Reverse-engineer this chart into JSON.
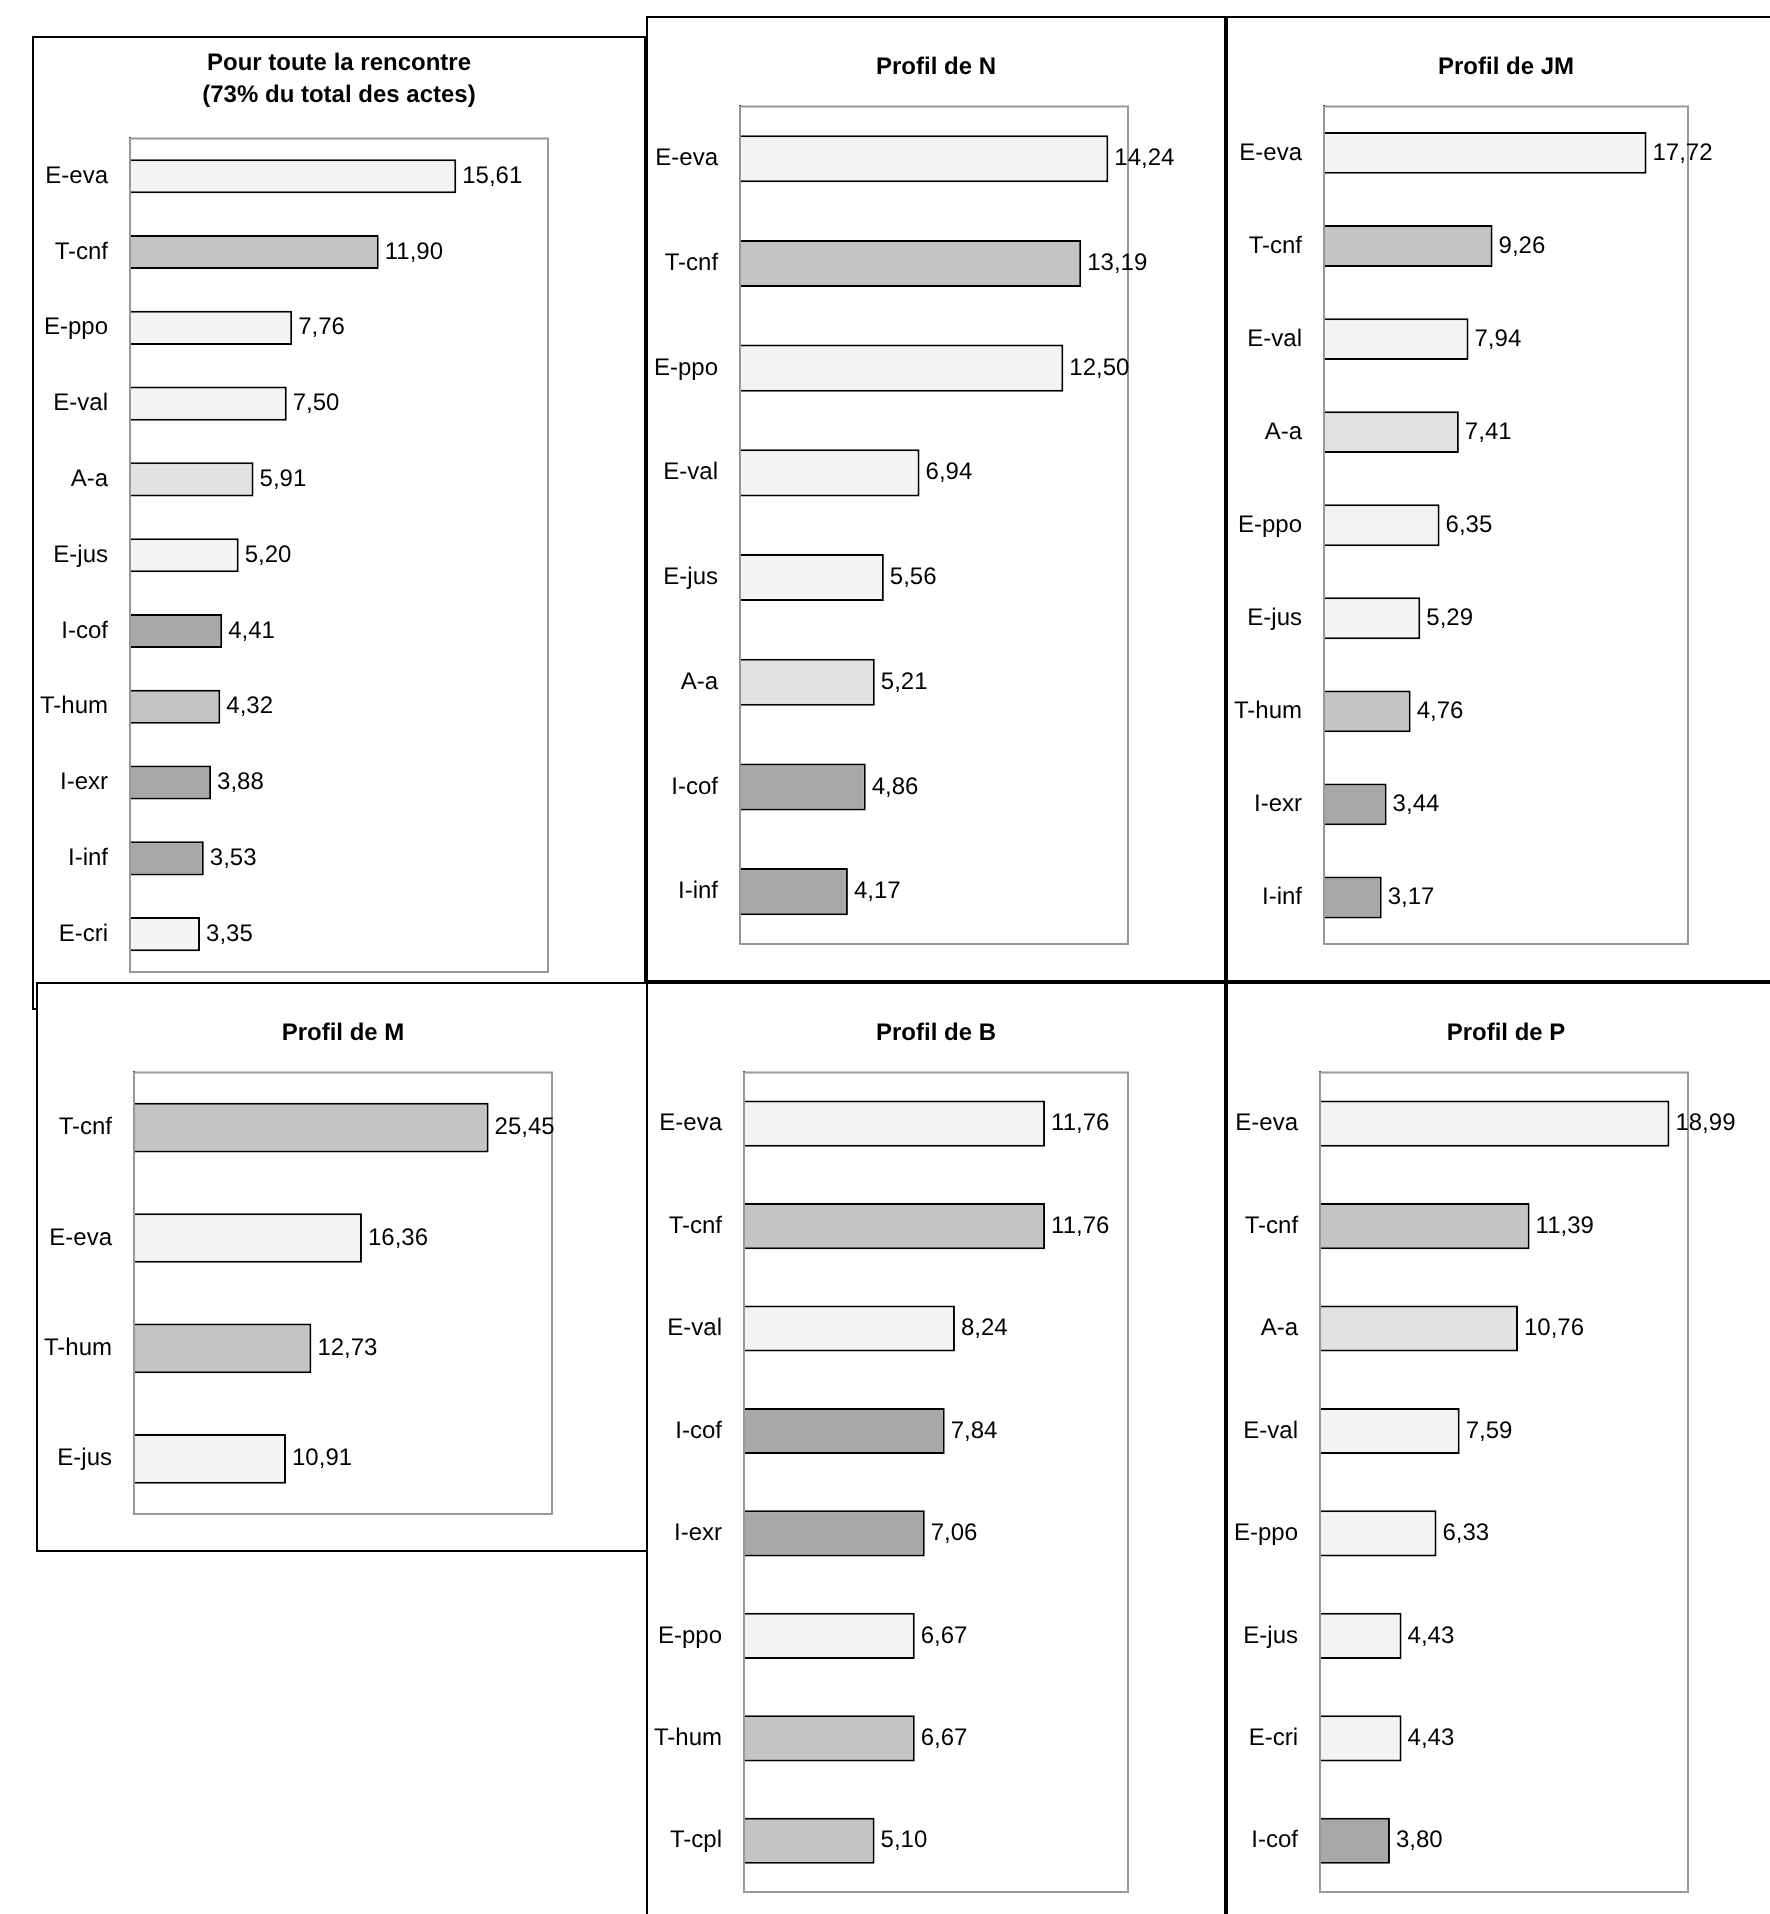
{
  "chart_data": [
    {
      "type": "bar",
      "orientation": "horizontal",
      "title": "Pour toute la rencontre",
      "subtitle": "(73% du total des actes)",
      "categories": [
        "E-eva",
        "T-cnf",
        "E-ppo",
        "E-val",
        "A-a",
        "E-jus",
        "I-cof",
        "T-hum",
        "I-exr",
        "I-inf",
        "E-cri"
      ],
      "values": [
        15.61,
        11.9,
        7.76,
        7.5,
        5.91,
        5.2,
        4.41,
        4.32,
        3.88,
        3.53,
        3.35
      ],
      "value_labels": [
        "15,61",
        "11,90",
        "7,76",
        "7,50",
        "5,91",
        "5,20",
        "4,41",
        "4,32",
        "3,88",
        "3,53",
        "3,35"
      ],
      "colors": [
        "#f4f4f4",
        "#c4c4c4",
        "#f4f4f4",
        "#f4f4f4",
        "#e2e2e2",
        "#f4f4f4",
        "#a8a8a8",
        "#c4c4c4",
        "#a8a8a8",
        "#a8a8a8",
        "#f4f4f4"
      ],
      "legend": false
    },
    {
      "type": "bar",
      "orientation": "horizontal",
      "title": "Profil de N",
      "categories": [
        "E-eva",
        "T-cnf",
        "E-ppo",
        "E-val",
        "E-jus",
        "A-a",
        "I-cof",
        "I-inf"
      ],
      "values": [
        14.24,
        13.19,
        12.5,
        6.94,
        5.56,
        5.21,
        4.86,
        4.17
      ],
      "value_labels": [
        "14,24",
        "13,19",
        "12,50",
        "6,94",
        "5,56",
        "5,21",
        "4,86",
        "4,17"
      ],
      "colors": [
        "#f4f4f4",
        "#c4c4c4",
        "#f4f4f4",
        "#f4f4f4",
        "#f4f4f4",
        "#e2e2e2",
        "#a8a8a8",
        "#a8a8a8"
      ],
      "legend": false
    },
    {
      "type": "bar",
      "orientation": "horizontal",
      "title": "Profil de JM",
      "categories": [
        "E-eva",
        "T-cnf",
        "E-val",
        "A-a",
        "E-ppo",
        "E-jus",
        "T-hum",
        "I-exr",
        "I-inf"
      ],
      "values": [
        17.72,
        9.26,
        7.94,
        7.41,
        6.35,
        5.29,
        4.76,
        3.44,
        3.17
      ],
      "value_labels": [
        "17,72",
        "9,26",
        "7,94",
        "7,41",
        "6,35",
        "5,29",
        "4,76",
        "3,44",
        "3,17"
      ],
      "colors": [
        "#f4f4f4",
        "#c4c4c4",
        "#f4f4f4",
        "#e2e2e2",
        "#f4f4f4",
        "#f4f4f4",
        "#c4c4c4",
        "#a8a8a8",
        "#a8a8a8"
      ],
      "legend": false
    },
    {
      "type": "bar",
      "orientation": "horizontal",
      "title": "Profil de M",
      "categories": [
        "T-cnf",
        "E-eva",
        "T-hum",
        "E-jus"
      ],
      "values": [
        25.45,
        16.36,
        12.73,
        10.91
      ],
      "value_labels": [
        "25,45",
        "16,36",
        "12,73",
        "10,91"
      ],
      "colors": [
        "#c4c4c4",
        "#f4f4f4",
        "#c4c4c4",
        "#f4f4f4"
      ],
      "legend": false
    },
    {
      "type": "bar",
      "orientation": "horizontal",
      "title": "Profil de B",
      "categories": [
        "E-eva",
        "T-cnf",
        "E-val",
        "I-cof",
        "I-exr",
        "E-ppo",
        "T-hum",
        "T-cpl"
      ],
      "values": [
        11.76,
        11.76,
        8.24,
        7.84,
        7.06,
        6.67,
        6.67,
        5.1
      ],
      "value_labels": [
        "11,76",
        "11,76",
        "8,24",
        "7,84",
        "7,06",
        "6,67",
        "6,67",
        "5,10"
      ],
      "colors": [
        "#f4f4f4",
        "#c4c4c4",
        "#f4f4f4",
        "#a8a8a8",
        "#a8a8a8",
        "#f4f4f4",
        "#c4c4c4",
        "#c4c4c4"
      ],
      "legend": false
    },
    {
      "type": "bar",
      "orientation": "horizontal",
      "title": "Profil de P",
      "categories": [
        "E-eva",
        "T-cnf",
        "A-a",
        "E-val",
        "E-ppo",
        "E-jus",
        "E-cri",
        "I-cof"
      ],
      "values": [
        18.99,
        11.39,
        10.76,
        7.59,
        6.33,
        4.43,
        4.43,
        3.8
      ],
      "value_labels": [
        "18,99",
        "11,39",
        "10,76",
        "7,59",
        "6,33",
        "4,43",
        "4,43",
        "3,80"
      ],
      "colors": [
        "#f4f4f4",
        "#c4c4c4",
        "#e2e2e2",
        "#f4f4f4",
        "#f4f4f4",
        "#f4f4f4",
        "#f4f4f4",
        "#a8a8a8"
      ],
      "legend": false
    }
  ]
}
